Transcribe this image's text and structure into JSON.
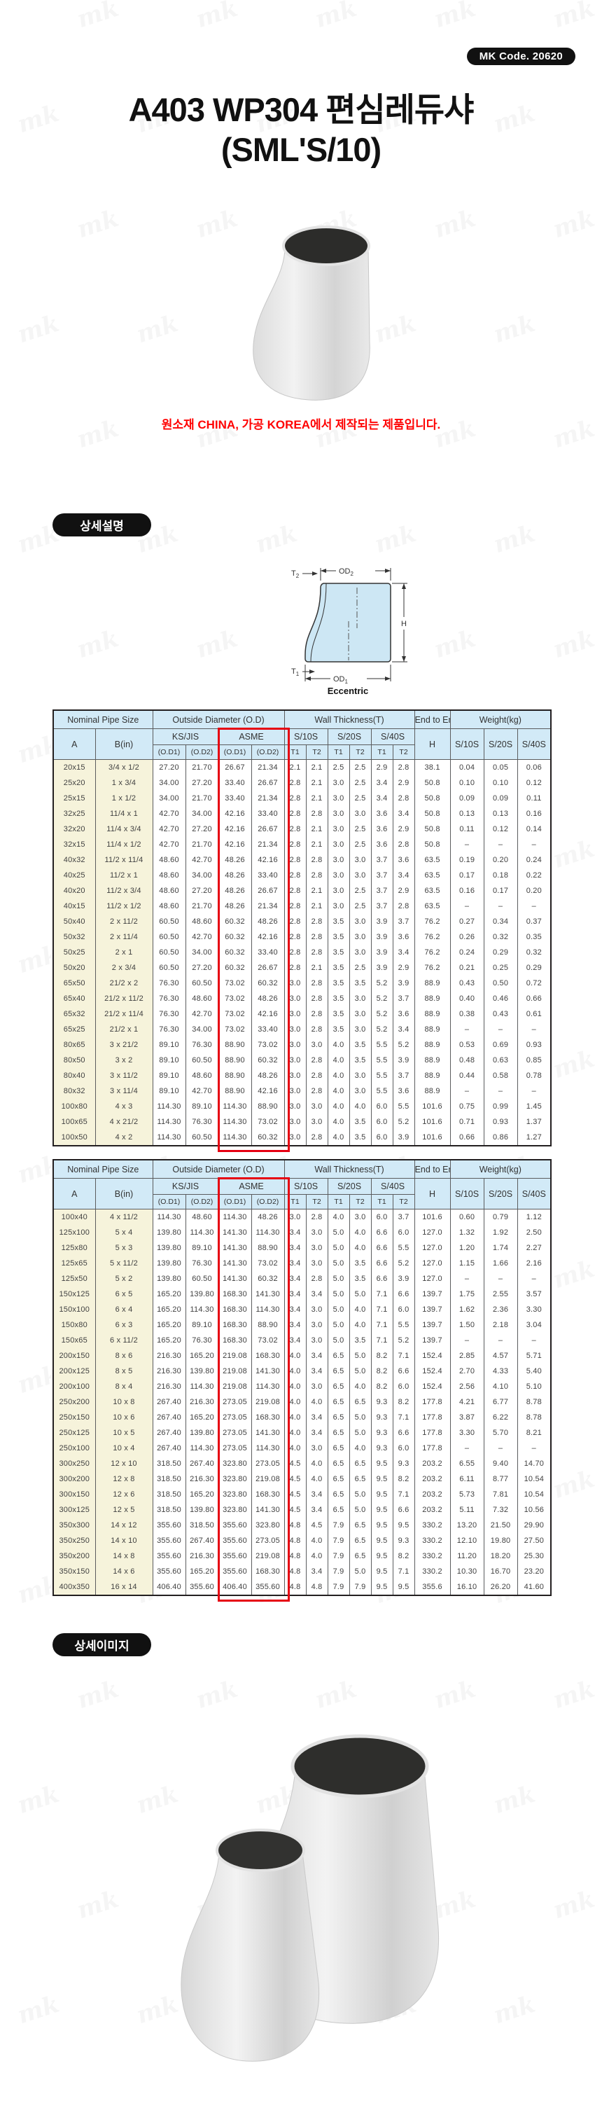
{
  "watermark_text": "mk",
  "badge": {
    "label": "MK Code. 20620"
  },
  "title": {
    "line1": "A403 WP304 편심레듀샤",
    "line2": "(SML'S/10)"
  },
  "notice": "원소재 CHINA, 가공 KOREA에서 제작되는 제품입니다.",
  "sections": {
    "detail": "상세설명",
    "detail_image": "상세이미지"
  },
  "diagram": {
    "od": "OD",
    "t": "T",
    "sub1": "1",
    "sub2": "2",
    "h": "H",
    "caption": "Eccentric"
  },
  "colors": {
    "header_blue": "#d2eaf7",
    "nominal_cream": "#f6f3db",
    "highlight_red": "#e60012",
    "notice_red": "#ff0202",
    "diagram_blue": "#cde7f4"
  },
  "table": {
    "header": {
      "group_nominal": "Nominal Pipe Size",
      "group_od": "Outside Diameter (O.D)",
      "group_wall": "Wall Thickness(T)",
      "group_end": "End to End",
      "group_weight": "Weight(kg)",
      "col_a": "A",
      "col_b": "B(in)",
      "ks_jis": "KS/JIS",
      "asme": "ASME",
      "s10s": "S/10S",
      "s20s": "S/20S",
      "s40s": "S/40S",
      "od1": "(O.D1)",
      "od2": "(O.D2)",
      "t1": "T1",
      "t2": "T2",
      "h": "H",
      "w10s": "S/10S",
      "w20s": "S/20S",
      "w40s": "S/40S"
    },
    "table1_rows": [
      [
        "20x15",
        "3/4 x 1/2",
        "27.20",
        "21.70",
        "26.67",
        "21.34",
        "2.1",
        "2.1",
        "2.5",
        "2.5",
        "2.9",
        "2.8",
        "38.1",
        "0.04",
        "0.05",
        "0.06"
      ],
      [
        "25x20",
        "1 x 3/4",
        "34.00",
        "27.20",
        "33.40",
        "26.67",
        "2.8",
        "2.1",
        "3.0",
        "2.5",
        "3.4",
        "2.9",
        "50.8",
        "0.10",
        "0.10",
        "0.12"
      ],
      [
        "25x15",
        "1 x 1/2",
        "34.00",
        "21.70",
        "33.40",
        "21.34",
        "2.8",
        "2.1",
        "3.0",
        "2.5",
        "3.4",
        "2.8",
        "50.8",
        "0.09",
        "0.09",
        "0.11"
      ],
      [
        "32x25",
        "11/4 x 1",
        "42.70",
        "34.00",
        "42.16",
        "33.40",
        "2.8",
        "2.8",
        "3.0",
        "3.0",
        "3.6",
        "3.4",
        "50.8",
        "0.13",
        "0.13",
        "0.16"
      ],
      [
        "32x20",
        "11/4 x 3/4",
        "42.70",
        "27.20",
        "42.16",
        "26.67",
        "2.8",
        "2.1",
        "3.0",
        "2.5",
        "3.6",
        "2.9",
        "50.8",
        "0.11",
        "0.12",
        "0.14"
      ],
      [
        "32x15",
        "11/4 x 1/2",
        "42.70",
        "21.70",
        "42.16",
        "21.34",
        "2.8",
        "2.1",
        "3.0",
        "2.5",
        "3.6",
        "2.8",
        "50.8",
        "–",
        "–",
        "–"
      ],
      [
        "40x32",
        "11/2 x 11/4",
        "48.60",
        "42.70",
        "48.26",
        "42.16",
        "2.8",
        "2.8",
        "3.0",
        "3.0",
        "3.7",
        "3.6",
        "63.5",
        "0.19",
        "0.20",
        "0.24"
      ],
      [
        "40x25",
        "11/2 x 1",
        "48.60",
        "34.00",
        "48.26",
        "33.40",
        "2.8",
        "2.8",
        "3.0",
        "3.0",
        "3.7",
        "3.4",
        "63.5",
        "0.17",
        "0.18",
        "0.22"
      ],
      [
        "40x20",
        "11/2 x 3/4",
        "48.60",
        "27.20",
        "48.26",
        "26.67",
        "2.8",
        "2.1",
        "3.0",
        "2.5",
        "3.7",
        "2.9",
        "63.5",
        "0.16",
        "0.17",
        "0.20"
      ],
      [
        "40x15",
        "11/2 x 1/2",
        "48.60",
        "21.70",
        "48.26",
        "21.34",
        "2.8",
        "2.1",
        "3.0",
        "2.5",
        "3.7",
        "2.8",
        "63.5",
        "–",
        "–",
        "–"
      ],
      [
        "50x40",
        "2 x 11/2",
        "60.50",
        "48.60",
        "60.32",
        "48.26",
        "2.8",
        "2.8",
        "3.5",
        "3.0",
        "3.9",
        "3.7",
        "76.2",
        "0.27",
        "0.34",
        "0.37"
      ],
      [
        "50x32",
        "2 x 11/4",
        "60.50",
        "42.70",
        "60.32",
        "42.16",
        "2.8",
        "2.8",
        "3.5",
        "3.0",
        "3.9",
        "3.6",
        "76.2",
        "0.26",
        "0.32",
        "0.35"
      ],
      [
        "50x25",
        "2 x 1",
        "60.50",
        "34.00",
        "60.32",
        "33.40",
        "2.8",
        "2.8",
        "3.5",
        "3.0",
        "3.9",
        "3.4",
        "76.2",
        "0.24",
        "0.29",
        "0.32"
      ],
      [
        "50x20",
        "2 x 3/4",
        "60.50",
        "27.20",
        "60.32",
        "26.67",
        "2.8",
        "2.1",
        "3.5",
        "2.5",
        "3.9",
        "2.9",
        "76.2",
        "0.21",
        "0.25",
        "0.29"
      ],
      [
        "65x50",
        "21/2 x 2",
        "76.30",
        "60.50",
        "73.02",
        "60.32",
        "3.0",
        "2.8",
        "3.5",
        "3.5",
        "5.2",
        "3.9",
        "88.9",
        "0.43",
        "0.50",
        "0.72"
      ],
      [
        "65x40",
        "21/2 x 11/2",
        "76.30",
        "48.60",
        "73.02",
        "48.26",
        "3.0",
        "2.8",
        "3.5",
        "3.0",
        "5.2",
        "3.7",
        "88.9",
        "0.40",
        "0.46",
        "0.66"
      ],
      [
        "65x32",
        "21/2 x 11/4",
        "76.30",
        "42.70",
        "73.02",
        "42.16",
        "3.0",
        "2.8",
        "3.5",
        "3.0",
        "5.2",
        "3.6",
        "88.9",
        "0.38",
        "0.43",
        "0.61"
      ],
      [
        "65x25",
        "21/2 x 1",
        "76.30",
        "34.00",
        "73.02",
        "33.40",
        "3.0",
        "2.8",
        "3.5",
        "3.0",
        "5.2",
        "3.4",
        "88.9",
        "–",
        "–",
        "–"
      ],
      [
        "80x65",
        "3 x 21/2",
        "89.10",
        "76.30",
        "88.90",
        "73.02",
        "3.0",
        "3.0",
        "4.0",
        "3.5",
        "5.5",
        "5.2",
        "88.9",
        "0.53",
        "0.69",
        "0.93"
      ],
      [
        "80x50",
        "3 x 2",
        "89.10",
        "60.50",
        "88.90",
        "60.32",
        "3.0",
        "2.8",
        "4.0",
        "3.5",
        "5.5",
        "3.9",
        "88.9",
        "0.48",
        "0.63",
        "0.85"
      ],
      [
        "80x40",
        "3 x 11/2",
        "89.10",
        "48.60",
        "88.90",
        "48.26",
        "3.0",
        "2.8",
        "4.0",
        "3.0",
        "5.5",
        "3.7",
        "88.9",
        "0.44",
        "0.58",
        "0.78"
      ],
      [
        "80x32",
        "3 x 11/4",
        "89.10",
        "42.70",
        "88.90",
        "42.16",
        "3.0",
        "2.8",
        "4.0",
        "3.0",
        "5.5",
        "3.6",
        "88.9",
        "–",
        "–",
        "–"
      ],
      [
        "100x80",
        "4 x 3",
        "114.30",
        "89.10",
        "114.30",
        "88.90",
        "3.0",
        "3.0",
        "4.0",
        "4.0",
        "6.0",
        "5.5",
        "101.6",
        "0.75",
        "0.99",
        "1.45"
      ],
      [
        "100x65",
        "4 x 21/2",
        "114.30",
        "76.30",
        "114.30",
        "73.02",
        "3.0",
        "3.0",
        "4.0",
        "3.5",
        "6.0",
        "5.2",
        "101.6",
        "0.71",
        "0.93",
        "1.37"
      ],
      [
        "100x50",
        "4 x 2",
        "114.30",
        "60.50",
        "114.30",
        "60.32",
        "3.0",
        "2.8",
        "4.0",
        "3.5",
        "6.0",
        "3.9",
        "101.6",
        "0.66",
        "0.86",
        "1.27"
      ]
    ],
    "table2_rows": [
      [
        "100x40",
        "4 x 11/2",
        "114.30",
        "48.60",
        "114.30",
        "48.26",
        "3.0",
        "2.8",
        "4.0",
        "3.0",
        "6.0",
        "3.7",
        "101.6",
        "0.60",
        "0.79",
        "1.12"
      ],
      [
        "125x100",
        "5 x 4",
        "139.80",
        "114.30",
        "141.30",
        "114.30",
        "3.4",
        "3.0",
        "5.0",
        "4.0",
        "6.6",
        "6.0",
        "127.0",
        "1.32",
        "1.92",
        "2.50"
      ],
      [
        "125x80",
        "5 x 3",
        "139.80",
        "89.10",
        "141.30",
        "88.90",
        "3.4",
        "3.0",
        "5.0",
        "4.0",
        "6.6",
        "5.5",
        "127.0",
        "1.20",
        "1.74",
        "2.27"
      ],
      [
        "125x65",
        "5 x 11/2",
        "139.80",
        "76.30",
        "141.30",
        "73.02",
        "3.4",
        "3.0",
        "5.0",
        "3.5",
        "6.6",
        "5.2",
        "127.0",
        "1.15",
        "1.66",
        "2.16"
      ],
      [
        "125x50",
        "5 x 2",
        "139.80",
        "60.50",
        "141.30",
        "60.32",
        "3.4",
        "2.8",
        "5.0",
        "3.5",
        "6.6",
        "3.9",
        "127.0",
        "–",
        "–",
        "–"
      ],
      [
        "150x125",
        "6 x 5",
        "165.20",
        "139.80",
        "168.30",
        "141.30",
        "3.4",
        "3.4",
        "5.0",
        "5.0",
        "7.1",
        "6.6",
        "139.7",
        "1.75",
        "2.55",
        "3.57"
      ],
      [
        "150x100",
        "6 x 4",
        "165.20",
        "114.30",
        "168.30",
        "114.30",
        "3.4",
        "3.0",
        "5.0",
        "4.0",
        "7.1",
        "6.0",
        "139.7",
        "1.62",
        "2.36",
        "3.30"
      ],
      [
        "150x80",
        "6 x 3",
        "165.20",
        "89.10",
        "168.30",
        "88.90",
        "3.4",
        "3.0",
        "5.0",
        "4.0",
        "7.1",
        "5.5",
        "139.7",
        "1.50",
        "2.18",
        "3.04"
      ],
      [
        "150x65",
        "6 x 11/2",
        "165.20",
        "76.30",
        "168.30",
        "73.02",
        "3.4",
        "3.0",
        "5.0",
        "3.5",
        "7.1",
        "5.2",
        "139.7",
        "–",
        "–",
        "–"
      ],
      [
        "200x150",
        "8 x 6",
        "216.30",
        "165.20",
        "219.08",
        "168.30",
        "4.0",
        "3.4",
        "6.5",
        "5.0",
        "8.2",
        "7.1",
        "152.4",
        "2.85",
        "4.57",
        "5.71"
      ],
      [
        "200x125",
        "8 x 5",
        "216.30",
        "139.80",
        "219.08",
        "141.30",
        "4.0",
        "3.4",
        "6.5",
        "5.0",
        "8.2",
        "6.6",
        "152.4",
        "2.70",
        "4.33",
        "5.40"
      ],
      [
        "200x100",
        "8 x 4",
        "216.30",
        "114.30",
        "219.08",
        "114.30",
        "4.0",
        "3.0",
        "6.5",
        "4.0",
        "8.2",
        "6.0",
        "152.4",
        "2.56",
        "4.10",
        "5.10"
      ],
      [
        "250x200",
        "10 x 8",
        "267.40",
        "216.30",
        "273.05",
        "219.08",
        "4.0",
        "4.0",
        "6.5",
        "6.5",
        "9.3",
        "8.2",
        "177.8",
        "4.21",
        "6.77",
        "8.78"
      ],
      [
        "250x150",
        "10 x 6",
        "267.40",
        "165.20",
        "273.05",
        "168.30",
        "4.0",
        "3.4",
        "6.5",
        "5.0",
        "9.3",
        "7.1",
        "177.8",
        "3.87",
        "6.22",
        "8.78"
      ],
      [
        "250x125",
        "10 x 5",
        "267.40",
        "139.80",
        "273.05",
        "141.30",
        "4.0",
        "3.4",
        "6.5",
        "5.0",
        "9.3",
        "6.6",
        "177.8",
        "3.30",
        "5.70",
        "8.21"
      ],
      [
        "250x100",
        "10 x 4",
        "267.40",
        "114.30",
        "273.05",
        "114.30",
        "4.0",
        "3.0",
        "6.5",
        "4.0",
        "9.3",
        "6.0",
        "177.8",
        "–",
        "–",
        "–"
      ],
      [
        "300x250",
        "12 x 10",
        "318.50",
        "267.40",
        "323.80",
        "273.05",
        "4.5",
        "4.0",
        "6.5",
        "6.5",
        "9.5",
        "9.3",
        "203.2",
        "6.55",
        "9.40",
        "14.70"
      ],
      [
        "300x200",
        "12 x 8",
        "318.50",
        "216.30",
        "323.80",
        "219.08",
        "4.5",
        "4.0",
        "6.5",
        "6.5",
        "9.5",
        "8.2",
        "203.2",
        "6.11",
        "8.77",
        "10.54"
      ],
      [
        "300x150",
        "12 x 6",
        "318.50",
        "165.20",
        "323.80",
        "168.30",
        "4.5",
        "3.4",
        "6.5",
        "5.0",
        "9.5",
        "7.1",
        "203.2",
        "5.73",
        "7.81",
        "10.54"
      ],
      [
        "300x125",
        "12 x 5",
        "318.50",
        "139.80",
        "323.80",
        "141.30",
        "4.5",
        "3.4",
        "6.5",
        "5.0",
        "9.5",
        "6.6",
        "203.2",
        "5.11",
        "7.32",
        "10.56"
      ],
      [
        "350x300",
        "14 x 12",
        "355.60",
        "318.50",
        "355.60",
        "323.80",
        "4.8",
        "4.5",
        "7.9",
        "6.5",
        "9.5",
        "9.5",
        "330.2",
        "13.20",
        "21.50",
        "29.90"
      ],
      [
        "350x250",
        "14 x 10",
        "355.60",
        "267.40",
        "355.60",
        "273.05",
        "4.8",
        "4.0",
        "7.9",
        "6.5",
        "9.5",
        "9.3",
        "330.2",
        "12.10",
        "19.80",
        "27.50"
      ],
      [
        "350x200",
        "14 x 8",
        "355.60",
        "216.30",
        "355.60",
        "219.08",
        "4.8",
        "4.0",
        "7.9",
        "6.5",
        "9.5",
        "8.2",
        "330.2",
        "11.20",
        "18.20",
        "25.30"
      ],
      [
        "350x150",
        "14 x 6",
        "355.60",
        "165.20",
        "355.60",
        "168.30",
        "4.8",
        "3.4",
        "7.9",
        "5.0",
        "9.5",
        "7.1",
        "330.2",
        "10.30",
        "16.70",
        "23.20"
      ],
      [
        "400x350",
        "16 x 14",
        "406.40",
        "355.60",
        "406.40",
        "355.60",
        "4.8",
        "4.8",
        "7.9",
        "7.9",
        "9.5",
        "9.5",
        "355.6",
        "16.10",
        "26.20",
        "41.60"
      ]
    ]
  }
}
